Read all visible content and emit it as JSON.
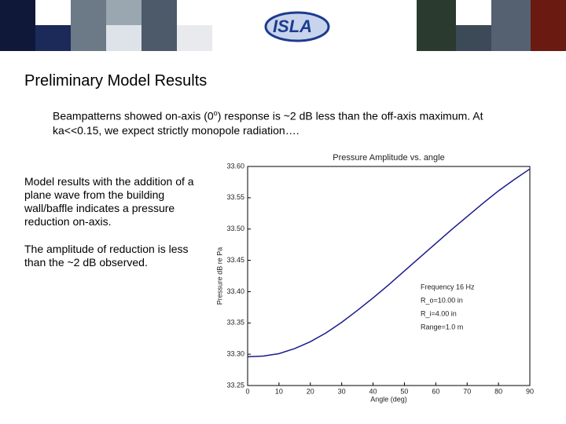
{
  "header": {
    "logo": "ISLA"
  },
  "slide": {
    "title": "Preliminary Model Results",
    "intro": [
      "Beampatterns showed on-axis (0",
      "o",
      ") response is ~2 dB less than the off-axis maximum.  At ka<<0.15, we expect strictly monopole radiation…."
    ],
    "notes": [
      "Model results with the addition of a plane wave from the building wall/baffle indicates a pressure reduction on-axis.",
      "The amplitude of reduction is less than the ~2 dB observed."
    ]
  },
  "chart_data": {
    "type": "line",
    "title": "Pressure Amplitude vs. angle",
    "xlabel": "Angle (deg)",
    "ylabel": "Pressure dB re Pa",
    "x": [
      0,
      5,
      10,
      15,
      20,
      25,
      30,
      35,
      40,
      45,
      50,
      55,
      60,
      65,
      70,
      75,
      80,
      85,
      90
    ],
    "series": [
      {
        "color": "#1a1a8c",
        "values": [
          33.296,
          33.297,
          33.301,
          33.309,
          33.32,
          33.334,
          33.351,
          33.37,
          33.39,
          33.411,
          33.433,
          33.455,
          33.477,
          33.499,
          33.52,
          33.541,
          33.561,
          33.579,
          33.596
        ]
      }
    ],
    "xlim": [
      0,
      90
    ],
    "xticks": [
      0,
      10,
      20,
      30,
      40,
      50,
      60,
      70,
      80,
      90
    ],
    "ylim": [
      33.25,
      33.6
    ],
    "yticks": [
      33.25,
      {
        "value": 33.3,
        "label": "33.30"
      },
      33.35,
      {
        "value": 33.4,
        "label": "33.40"
      },
      33.45,
      {
        "value": 33.5,
        "label": "33.50"
      },
      33.55,
      {
        "value": 33.6,
        "label": "33.60"
      }
    ],
    "annotations": [
      "Frequency 16 Hz",
      "R_o=10.00 in",
      "R_i=4.00 in",
      "Range=1.0 m"
    ]
  }
}
